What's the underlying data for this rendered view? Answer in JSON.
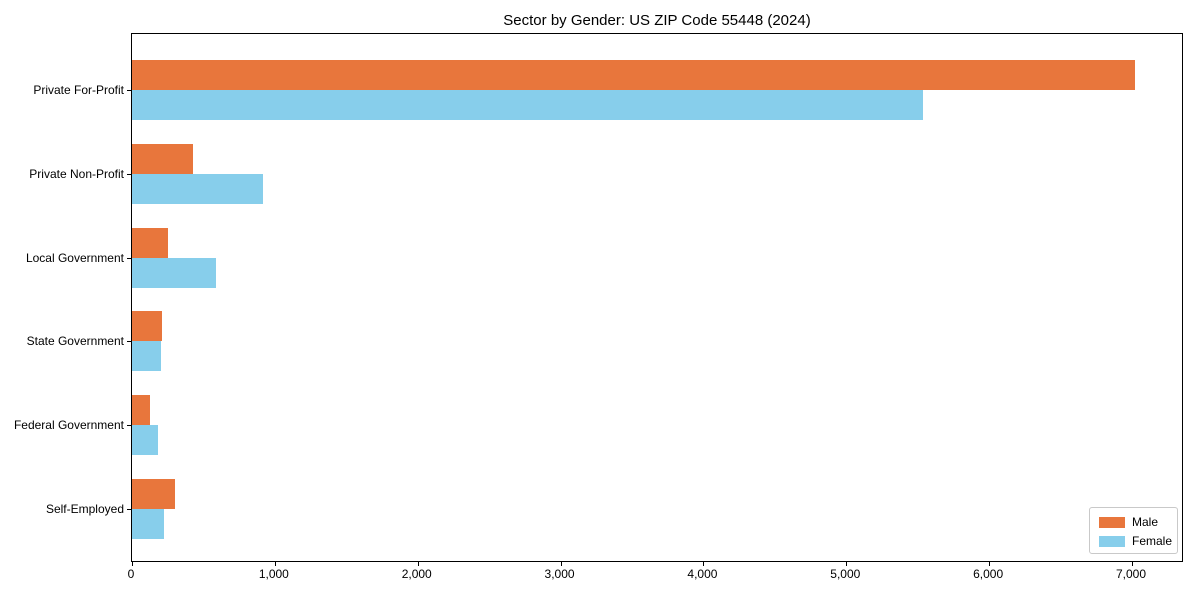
{
  "chart_data": {
    "type": "bar",
    "orientation": "horizontal",
    "title": "Sector by Gender: US ZIP Code 55448 (2024)",
    "categories": [
      "Private For-Profit",
      "Private Non-Profit",
      "Local Government",
      "State Government",
      "Federal Government",
      "Self-Employed"
    ],
    "series": [
      {
        "name": "Male",
        "color": "#e8763c",
        "values": [
          7020,
          430,
          250,
          210,
          125,
          300
        ]
      },
      {
        "name": "Female",
        "color": "#87ceeb",
        "values": [
          5540,
          915,
          590,
          200,
          180,
          225
        ]
      }
    ],
    "xlabel": "",
    "ylabel": "",
    "xlim": [
      0,
      7350
    ],
    "x_ticks": [
      0,
      1000,
      2000,
      3000,
      4000,
      5000,
      6000,
      7000
    ],
    "x_tick_labels": [
      "0",
      "1,000",
      "2,000",
      "3,000",
      "4,000",
      "5,000",
      "6,000",
      "7,000"
    ],
    "grid": false,
    "legend": {
      "position": "lower-right",
      "entries": [
        "Male",
        "Female"
      ]
    },
    "colors": {
      "background": "#ffffff",
      "spine": "#000000",
      "text": "#000000",
      "legend_border": "#c9c9c9"
    }
  }
}
